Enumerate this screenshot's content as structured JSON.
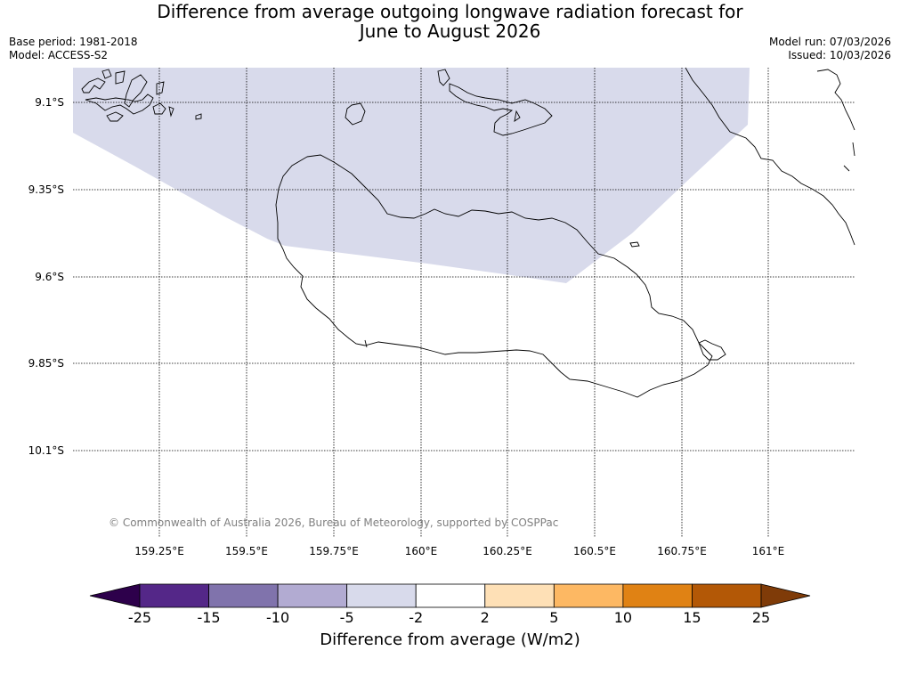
{
  "title_line1": "Difference from average outgoing longwave radiation forecast for",
  "title_line2": "June to August 2026",
  "base_period": "Base period: 1981-2018",
  "model": "Model: ACCESS-S2",
  "model_run": "Model run: 07/03/2026",
  "issued": "Issued: 10/03/2026",
  "lat_labels": [
    "9.1°S",
    "9.35°S",
    "9.6°S",
    "9.85°S",
    "10.1°S"
  ],
  "lon_labels": [
    "159.25°E",
    "159.5°E",
    "159.75°E",
    "160°E",
    "160.25°E",
    "160.5°E",
    "160.75°E",
    "161°E"
  ],
  "copyright": "© Commonwealth of Australia 2026, Bureau of Meteorology, supported by COSPPac",
  "colorbar": {
    "label": "Difference from average (W/m2)",
    "ticks": [
      "-25",
      "-15",
      "-10",
      "-5",
      "-2",
      "2",
      "5",
      "10",
      "15",
      "25"
    ],
    "colors": [
      "#2d004b",
      "#542788",
      "#8073ac",
      "#b2abd2",
      "#d8daeb",
      "#ffffff",
      "#fee0b6",
      "#fdb863",
      "#e08214",
      "#b35806",
      "#7f3b08"
    ]
  },
  "anomaly_region": {
    "bin": "-5 to -2",
    "color": "#d8daeb"
  }
}
